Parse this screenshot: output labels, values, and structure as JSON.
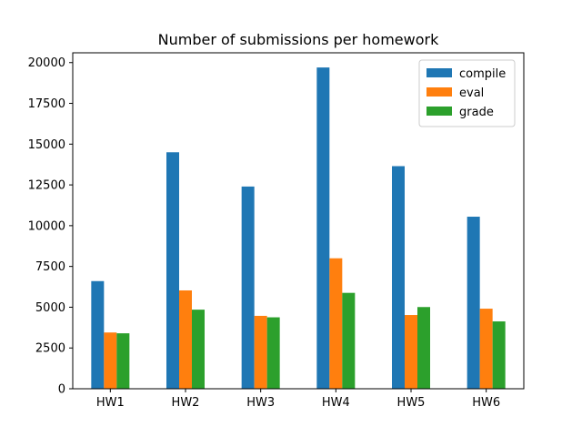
{
  "chart_data": {
    "type": "bar",
    "title": "Number of submissions per homework",
    "xlabel": "",
    "ylabel": "",
    "categories": [
      "HW1",
      "HW2",
      "HW3",
      "HW4",
      "HW5",
      "HW6"
    ],
    "series": [
      {
        "name": "compile",
        "color": "#1f77b4",
        "values": [
          6600,
          14500,
          12400,
          19700,
          13650,
          10550
        ]
      },
      {
        "name": "eval",
        "color": "#ff7f0e",
        "values": [
          3450,
          6030,
          4470,
          8000,
          4520,
          4910
        ]
      },
      {
        "name": "grade",
        "color": "#2ca02c",
        "values": [
          3400,
          4850,
          4380,
          5880,
          5010,
          4130
        ]
      }
    ],
    "ylim": [
      0,
      20600
    ],
    "yticks": [
      0,
      2500,
      5000,
      7500,
      10000,
      12500,
      15000,
      17500,
      20000
    ],
    "legend_position": "top-right",
    "grid": false
  }
}
